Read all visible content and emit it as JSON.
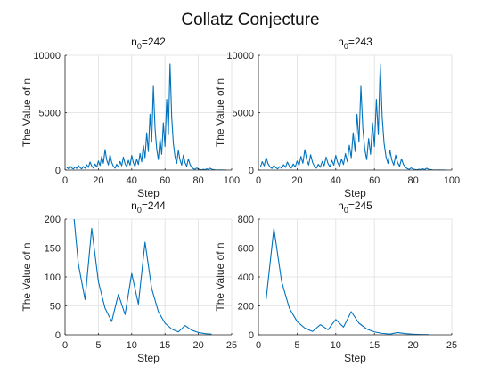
{
  "figure": {
    "title": "Collatz Conjecture",
    "line_color": "#0072BD",
    "axis_color": "#262626",
    "grid_color": "#dfdfdf"
  },
  "chart_data": [
    {
      "type": "line",
      "title": "n0=242",
      "title_base": "n",
      "title_sub": "0",
      "title_rest": "=242",
      "xlabel": "Step",
      "ylabel": "The Value of n",
      "xlim": [
        0,
        100
      ],
      "ylim": [
        0,
        10000
      ],
      "xticks": [
        0,
        20,
        40,
        60,
        80,
        100
      ],
      "yticks": [
        0,
        5000,
        10000
      ],
      "grid": true,
      "start": 242
    },
    {
      "type": "line",
      "title": "n0=243",
      "title_base": "n",
      "title_sub": "0",
      "title_rest": "=243",
      "xlabel": "Step",
      "ylabel": "The Value of n",
      "xlim": [
        0,
        100
      ],
      "ylim": [
        0,
        10000
      ],
      "xticks": [
        0,
        20,
        40,
        60,
        80,
        100
      ],
      "yticks": [
        0,
        5000,
        10000
      ],
      "grid": true,
      "start": 243
    },
    {
      "type": "line",
      "title": "n0=244",
      "title_base": "n",
      "title_sub": "0",
      "title_rest": "=244",
      "xlabel": "Step",
      "ylabel": "The Value of n",
      "xlim": [
        0,
        25
      ],
      "ylim": [
        0,
        200
      ],
      "xticks": [
        0,
        5,
        10,
        15,
        20,
        25
      ],
      "yticks": [
        0,
        50,
        100,
        150,
        200
      ],
      "grid": true,
      "start": 244
    },
    {
      "type": "line",
      "title": "n0=245",
      "title_base": "n",
      "title_sub": "0",
      "title_rest": "=245",
      "xlabel": "Step",
      "ylabel": "The Value of n",
      "xlim": [
        0,
        25
      ],
      "ylim": [
        0,
        800
      ],
      "xticks": [
        0,
        5,
        10,
        15,
        20,
        25
      ],
      "yticks": [
        0,
        200,
        400,
        600,
        800
      ],
      "grid": true,
      "start": 245
    }
  ]
}
